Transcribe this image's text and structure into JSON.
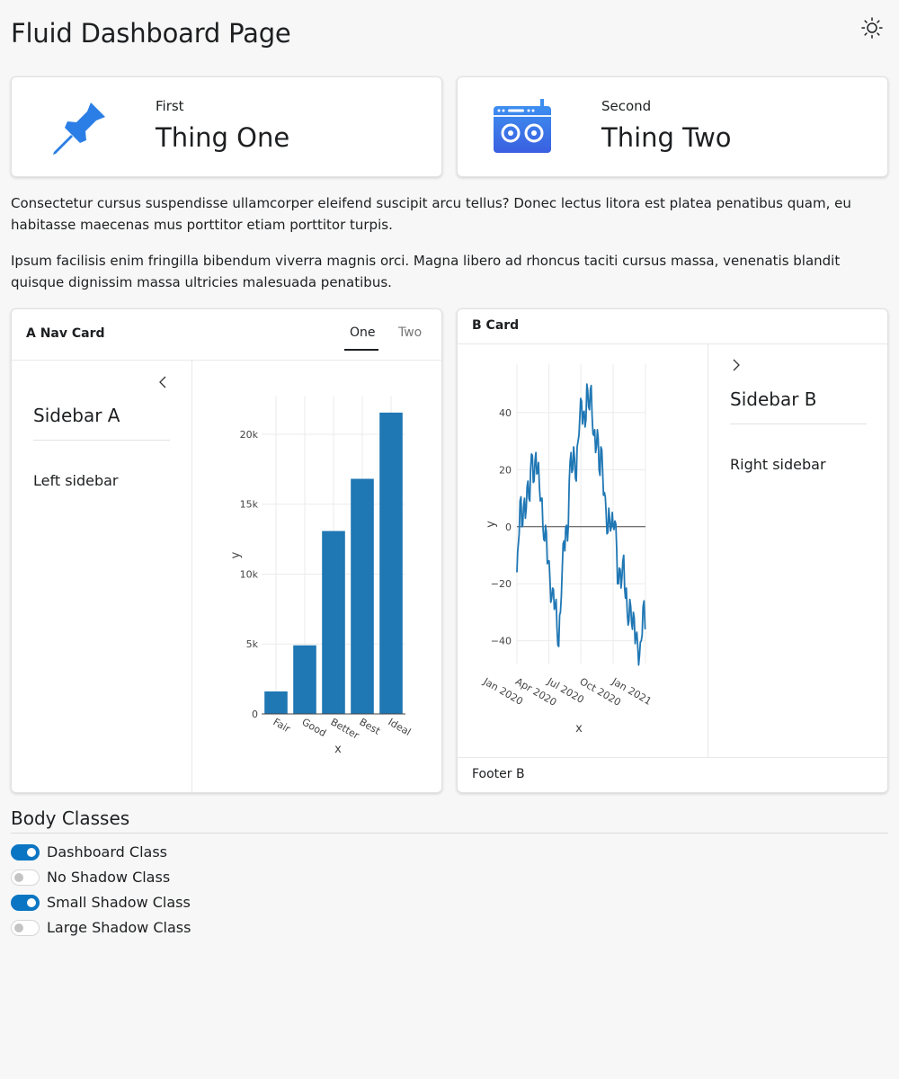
{
  "page": {
    "title": "Fluid Dashboard Page"
  },
  "theme": {
    "icon": "sun-icon"
  },
  "value_boxes": [
    {
      "title": "First",
      "value": "Thing One",
      "icon": "pin-icon",
      "icon_color": "#2b7ee6"
    },
    {
      "title": "Second",
      "value": "Thing Two",
      "icon": "boombox-icon",
      "icon_color": "#2b7ee6"
    }
  ],
  "paragraphs": [
    "Consectetur cursus suspendisse ullamcorper eleifend suscipit arcu tellus? Donec lectus litora est platea penatibus quam, eu habitasse maecenas mus porttitor etiam porttitor turpis.",
    "Ipsum facilisis enim fringilla bibendum viverra magnis orci. Magna libero ad rhoncus taciti cursus massa, venenatis blandit quisque dignissim massa ultricies malesuada penatibus."
  ],
  "card_a": {
    "title": "A Nav Card",
    "tabs": [
      {
        "label": "One",
        "active": true
      },
      {
        "label": "Two",
        "active": false
      }
    ],
    "sidebar": {
      "title": "Sidebar A",
      "text": "Left sidebar",
      "collapse_icon": "chevron-left-icon"
    }
  },
  "card_b": {
    "title": "B Card",
    "footer": "Footer B",
    "sidebar": {
      "title": "Sidebar B",
      "text": "Right sidebar",
      "collapse_icon": "chevron-right-icon"
    }
  },
  "body_classes": {
    "title": "Body Classes",
    "switches": [
      {
        "label": "Dashboard Class",
        "on": true
      },
      {
        "label": "No Shadow Class",
        "on": false
      },
      {
        "label": "Small Shadow Class",
        "on": true
      },
      {
        "label": "Large Shadow Class",
        "on": false
      }
    ]
  },
  "colors": {
    "accent": "#0a75c2",
    "series": "#1f77b4"
  },
  "chart_data": [
    {
      "type": "bar",
      "categories": [
        "Fair",
        "Good",
        "Better",
        "Best",
        "Ideal"
      ],
      "values": [
        1610,
        4906,
        13082,
        16816,
        21551
      ],
      "xlabel": "x",
      "ylabel": "y",
      "ylim": [
        0,
        22700
      ],
      "yticks": [
        0,
        5000,
        10000,
        15000,
        20000
      ],
      "ytick_labels": [
        "0",
        "5k",
        "10k",
        "15k",
        "20k"
      ],
      "grid": true
    },
    {
      "type": "line",
      "xlabel": "x",
      "ylabel": "y",
      "xlim": [
        "2020-01-01",
        "2021-01-01"
      ],
      "ylim": [
        -48,
        57
      ],
      "xtick_labels": [
        "Jan 2020",
        "Apr 2020",
        "Jul 2020",
        "Oct 2020",
        "Jan 2021"
      ],
      "yticks": [
        -40,
        -20,
        0,
        20,
        40
      ],
      "ytick_labels": [
        "−40",
        "−20",
        "0",
        "20",
        "40"
      ],
      "grid": true,
      "series": [
        {
          "x": [
            "2020-01-01",
            "2020-01-05",
            "2020-01-10",
            "2020-01-15",
            "2020-01-20",
            "2020-01-25",
            "2020-01-30",
            "2020-02-04",
            "2020-02-09",
            "2020-02-14",
            "2020-02-19",
            "2020-02-24",
            "2020-02-29",
            "2020-03-05",
            "2020-03-10",
            "2020-03-15",
            "2020-03-20",
            "2020-03-25",
            "2020-03-30",
            "2020-04-04",
            "2020-04-09",
            "2020-04-14",
            "2020-04-19",
            "2020-04-24",
            "2020-04-29",
            "2020-05-04",
            "2020-05-09",
            "2020-05-14",
            "2020-05-19",
            "2020-05-24",
            "2020-05-29",
            "2020-06-03",
            "2020-06-08",
            "2020-06-13",
            "2020-06-18",
            "2020-06-23",
            "2020-06-28",
            "2020-07-03",
            "2020-07-08",
            "2020-07-13",
            "2020-07-18",
            "2020-07-23",
            "2020-07-28",
            "2020-08-02",
            "2020-08-07",
            "2020-08-12",
            "2020-08-17",
            "2020-08-22",
            "2020-08-27",
            "2020-09-01",
            "2020-09-06",
            "2020-09-11",
            "2020-09-16",
            "2020-09-21",
            "2020-09-26",
            "2020-10-01",
            "2020-10-06",
            "2020-10-11",
            "2020-10-16",
            "2020-10-21",
            "2020-10-26",
            "2020-10-31",
            "2020-11-05",
            "2020-11-10",
            "2020-11-15",
            "2020-11-20",
            "2020-11-25",
            "2020-11-30",
            "2020-12-05",
            "2020-12-10",
            "2020-12-15",
            "2020-12-20",
            "2020-12-25",
            "2020-12-31"
          ],
          "y": [
            -16,
            -6,
            9,
            0,
            7,
            3,
            14,
            10,
            20,
            25,
            16,
            26,
            19,
            14,
            10,
            0,
            -5,
            -2,
            -12,
            -18,
            -25,
            -22,
            -28,
            -35,
            -42,
            -30,
            -15,
            -5,
            0,
            -5,
            16,
            26,
            20,
            24,
            16,
            30,
            38,
            44,
            40,
            35,
            50,
            42,
            48,
            39,
            32,
            26,
            34,
            20,
            28,
            20,
            12,
            5,
            -2,
            3,
            0,
            0,
            2,
            -8,
            -20,
            -15,
            -18,
            -10,
            -25,
            -30,
            -33,
            -28,
            -36,
            -32,
            -38,
            -42,
            -45,
            -40,
            -28,
            -36
          ]
        }
      ]
    }
  ]
}
